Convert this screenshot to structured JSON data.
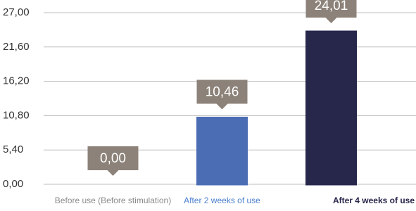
{
  "chart_data": {
    "type": "bar",
    "categories": [
      "Before use (Before stimulation)",
      "After 2 weeks of use",
      "After 4 weeks of use"
    ],
    "values": [
      0.0,
      10.46,
      24.01
    ],
    "value_labels": [
      "0,00",
      "10,46",
      "24,01"
    ],
    "colors": [
      "#8a7d71",
      "#4a6db4",
      "#27264b"
    ],
    "label_colors": [
      "#8a8a8a",
      "#4a7fd0",
      "#27264b"
    ],
    "ylim": [
      0,
      27
    ],
    "yticks": [
      {
        "value": 0,
        "label": "0,00"
      },
      {
        "value": 5.4,
        "label": "5,40"
      },
      {
        "value": 10.8,
        "label": "10,80"
      },
      {
        "value": 16.2,
        "label": "16,20"
      },
      {
        "value": 21.6,
        "label": "21,60"
      },
      {
        "value": 27,
        "label": "27,00"
      }
    ],
    "grid": true
  }
}
